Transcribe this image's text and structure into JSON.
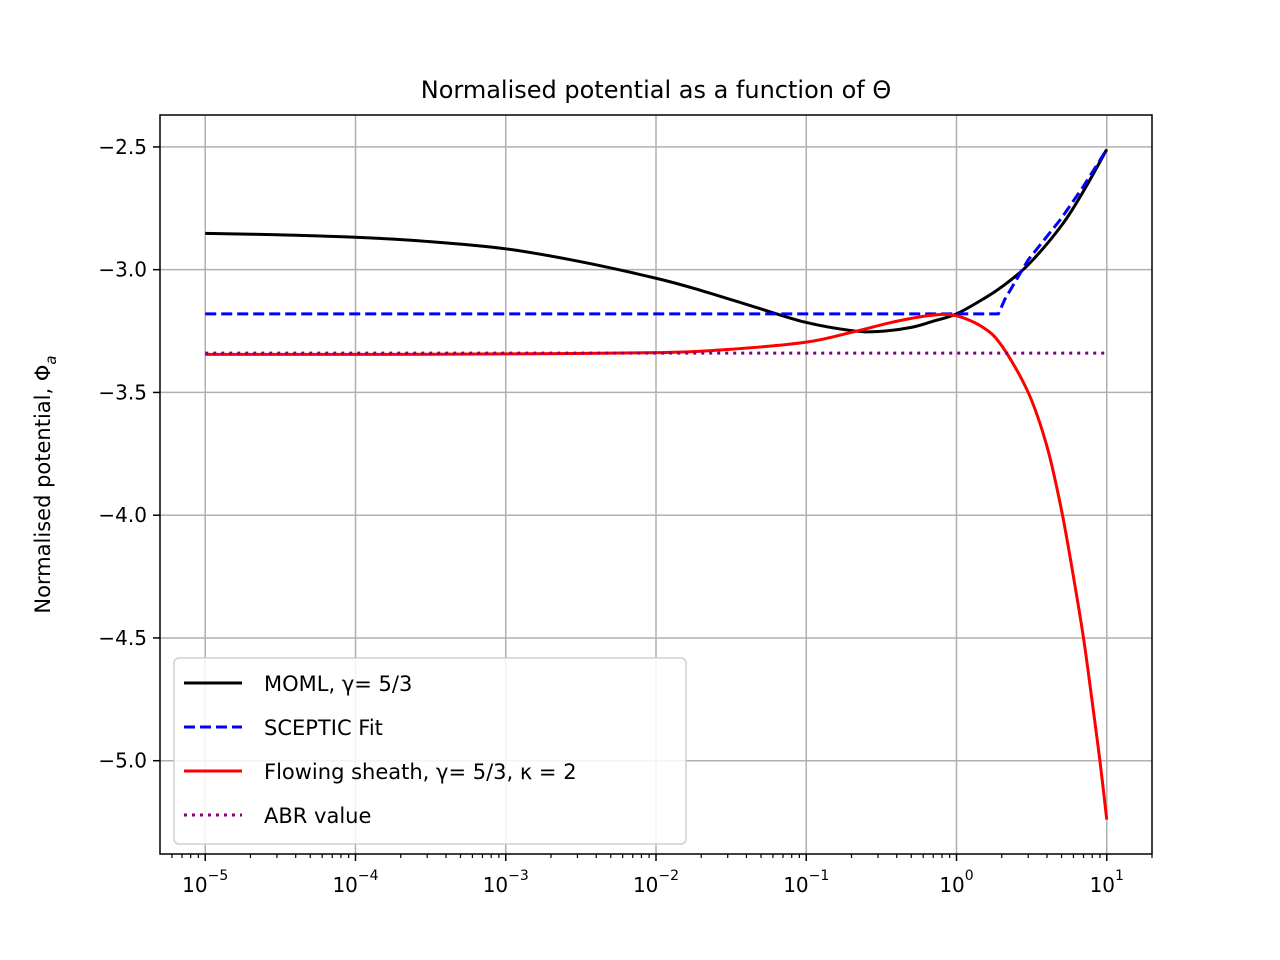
{
  "chart_data": {
    "type": "line",
    "title": "Normalised potential as a function of Θ",
    "xlabel": "",
    "ylabel": "Normalised potential, Φ",
    "ylabel_subscript": "a",
    "x_scale": "log",
    "xlim": [
      5e-06,
      20
    ],
    "ylim": [
      -5.38,
      -2.37
    ],
    "x_ticks": [
      {
        "value": 1e-05,
        "label": "10",
        "exp": "−5"
      },
      {
        "value": 0.0001,
        "label": "10",
        "exp": "−4"
      },
      {
        "value": 0.001,
        "label": "10",
        "exp": "−3"
      },
      {
        "value": 0.01,
        "label": "10",
        "exp": "−2"
      },
      {
        "value": 0.1,
        "label": "10",
        "exp": "−1"
      },
      {
        "value": 1,
        "label": "10",
        "exp": "0"
      },
      {
        "value": 10,
        "label": "10",
        "exp": "1"
      }
    ],
    "y_ticks": [
      {
        "value": -2.5,
        "label": "−2.5"
      },
      {
        "value": -3.0,
        "label": "−3.0"
      },
      {
        "value": -3.5,
        "label": "−3.5"
      },
      {
        "value": -4.0,
        "label": "−4.0"
      },
      {
        "value": -4.5,
        "label": "−4.5"
      },
      {
        "value": -5.0,
        "label": "−5.0"
      }
    ],
    "grid": true,
    "legend_position": "lower-left",
    "series": [
      {
        "name": "MOML, γ= 5/3",
        "color": "#000000",
        "dash": "solid",
        "x": [
          1e-05,
          3e-05,
          0.0001,
          0.0003,
          0.001,
          0.003,
          0.01,
          0.02,
          0.05,
          0.1,
          0.2,
          0.3,
          0.5,
          0.7,
          1,
          1.5,
          2,
          3,
          5,
          7,
          10
        ],
        "y": [
          -2.852,
          -2.858,
          -2.868,
          -2.885,
          -2.915,
          -2.965,
          -3.035,
          -3.085,
          -3.16,
          -3.215,
          -3.248,
          -3.252,
          -3.235,
          -3.21,
          -3.18,
          -3.12,
          -3.07,
          -2.98,
          -2.82,
          -2.68,
          -2.51
        ]
      },
      {
        "name": "SCEPTIC Fit",
        "color": "#0000ff",
        "dash": "dashed",
        "x": [
          1e-05,
          0.001,
          0.01,
          0.1,
          1,
          1.9,
          2.1,
          3,
          5,
          7,
          10
        ],
        "y": [
          -3.18,
          -3.18,
          -3.18,
          -3.18,
          -3.18,
          -3.18,
          -3.12,
          -2.96,
          -2.79,
          -2.66,
          -2.51
        ]
      },
      {
        "name": "Flowing sheath, γ= 5/3, κ = 2",
        "color": "#ff0000",
        "dash": "solid",
        "x": [
          1e-05,
          0.0001,
          0.001,
          0.01,
          0.03,
          0.1,
          0.2,
          0.4,
          0.7,
          1,
          1.5,
          2,
          3,
          4,
          5,
          6,
          7,
          8,
          9,
          10
        ],
        "y": [
          -3.345,
          -3.345,
          -3.343,
          -3.338,
          -3.325,
          -3.295,
          -3.255,
          -3.21,
          -3.185,
          -3.188,
          -3.235,
          -3.31,
          -3.5,
          -3.72,
          -3.98,
          -4.25,
          -4.5,
          -4.76,
          -5.0,
          -5.24
        ]
      },
      {
        "name": "ABR value",
        "color": "#800080",
        "dash": "dotted",
        "x": [
          1e-05,
          10
        ],
        "y": [
          -3.34,
          -3.34
        ]
      }
    ]
  }
}
